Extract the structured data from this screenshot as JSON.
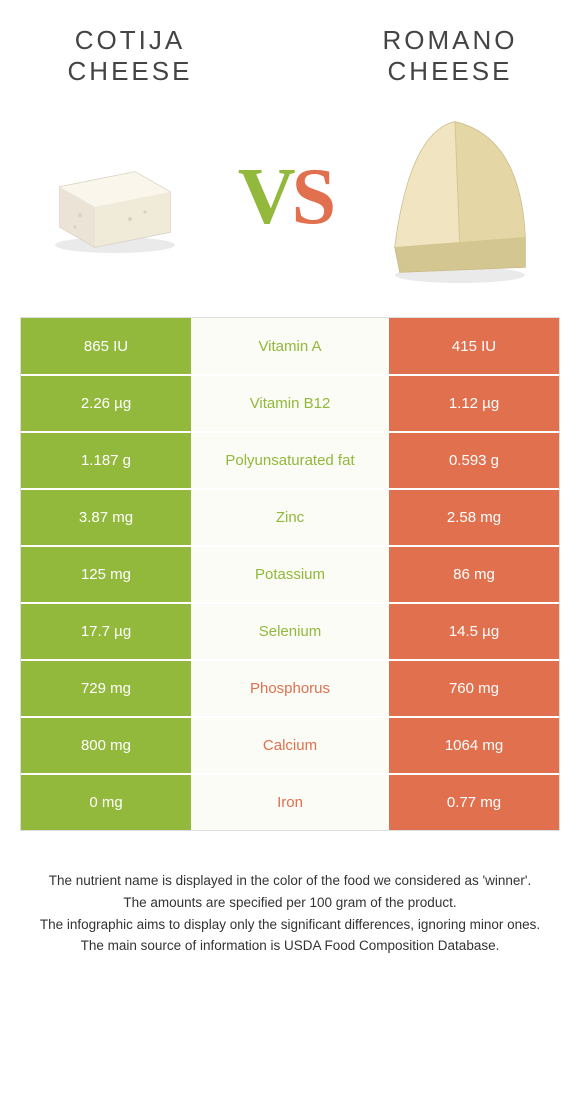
{
  "colors": {
    "green": "#92b83c",
    "orange": "#e1704f",
    "mid_bg": "#fafcf5",
    "border": "#dddddd"
  },
  "left": {
    "title_line1": "COTIJA",
    "title_line2": "CHEESE"
  },
  "right": {
    "title_line1": "ROMANO",
    "title_line2": "CHEESE"
  },
  "vs": {
    "v": "V",
    "s": "S"
  },
  "rows": [
    {
      "left": "865 IU",
      "mid": "Vitamin A",
      "right": "415 IU",
      "winner": "left"
    },
    {
      "left": "2.26 µg",
      "mid": "Vitamin B12",
      "right": "1.12 µg",
      "winner": "left"
    },
    {
      "left": "1.187 g",
      "mid": "Polyunsaturated fat",
      "right": "0.593 g",
      "winner": "left"
    },
    {
      "left": "3.87 mg",
      "mid": "Zinc",
      "right": "2.58 mg",
      "winner": "left"
    },
    {
      "left": "125 mg",
      "mid": "Potassium",
      "right": "86 mg",
      "winner": "left"
    },
    {
      "left": "17.7 µg",
      "mid": "Selenium",
      "right": "14.5 µg",
      "winner": "left"
    },
    {
      "left": "729 mg",
      "mid": "Phosphorus",
      "right": "760 mg",
      "winner": "right"
    },
    {
      "left": "800 mg",
      "mid": "Calcium",
      "right": "1064 mg",
      "winner": "right"
    },
    {
      "left": "0 mg",
      "mid": "Iron",
      "right": "0.77 mg",
      "winner": "right"
    }
  ],
  "footnotes": [
    "The nutrient name is displayed in the color of the food we considered as 'winner'.",
    "The amounts are specified per 100 gram of the product.",
    "The infographic aims to display only the significant differences, ignoring minor ones.",
    "The main source of information is USDA Food Composition Database."
  ]
}
